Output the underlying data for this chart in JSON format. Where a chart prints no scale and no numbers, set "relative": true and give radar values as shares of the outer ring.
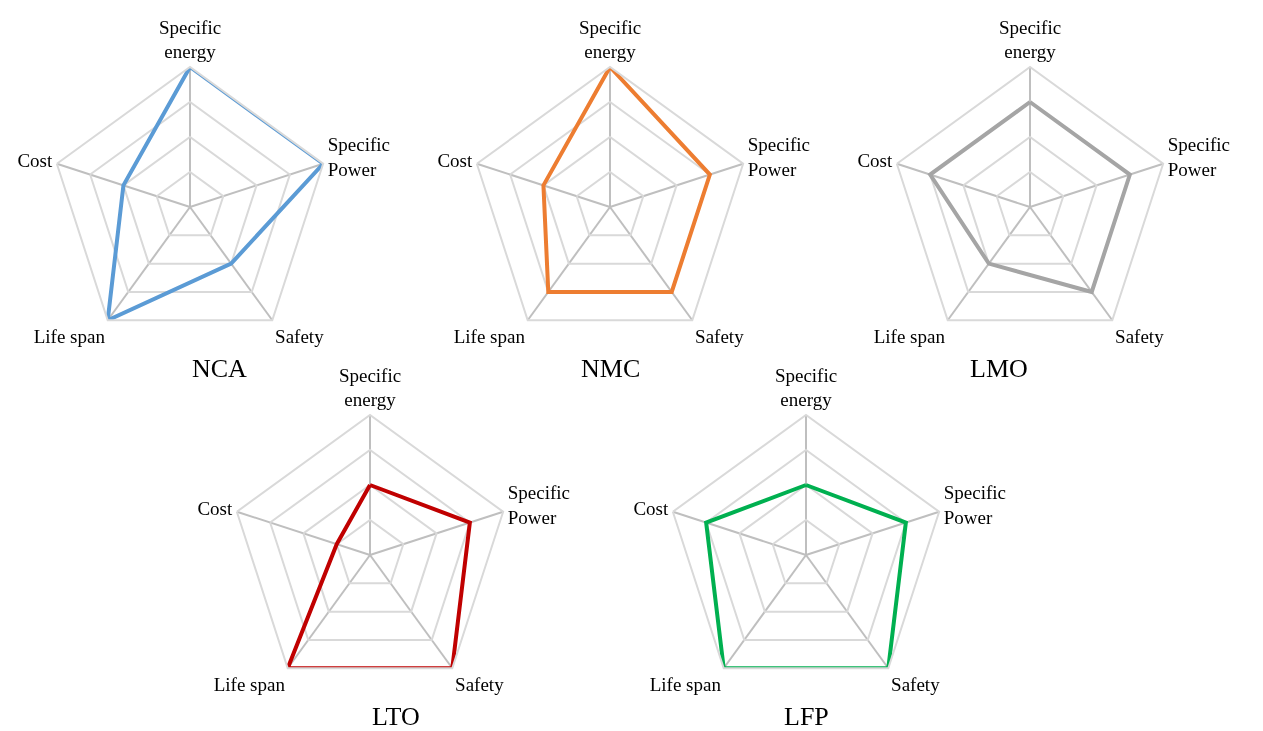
{
  "chart_data": [
    {
      "type": "radar",
      "title": "NCA",
      "relative": true,
      "grid": true,
      "marker": "none",
      "categories": [
        "Specific energy",
        "Specific Power",
        "Safety",
        "Life span",
        "Cost"
      ],
      "series": [
        {
          "color": "#5b9bd5",
          "values": [
            1,
            1,
            0.5,
            1,
            0.5
          ]
        }
      ]
    },
    {
      "type": "radar",
      "title": "NMC",
      "relative": true,
      "grid": true,
      "marker": "none",
      "categories": [
        "Specific energy",
        "Specific Power",
        "Safety",
        "Life span",
        "Cost"
      ],
      "series": [
        {
          "color": "#ed7d31",
          "values": [
            1,
            0.75,
            0.75,
            0.75,
            0.5
          ]
        }
      ]
    },
    {
      "type": "radar",
      "title": "LMO",
      "relative": true,
      "grid": true,
      "marker": "none",
      "categories": [
        "Specific energy",
        "Specific Power",
        "Safety",
        "Life span",
        "Cost"
      ],
      "series": [
        {
          "color": "#a5a5a5",
          "values": [
            0.75,
            0.75,
            0.75,
            0.5,
            0.75
          ]
        }
      ]
    },
    {
      "type": "radar",
      "title": "LTO",
      "relative": true,
      "grid": true,
      "marker": "none",
      "categories": [
        "Specific energy",
        "Specific Power",
        "Safety",
        "Life span",
        "Cost"
      ],
      "series": [
        {
          "color": "#c00000",
          "values": [
            0.5,
            0.75,
            1,
            1,
            0.25
          ]
        }
      ]
    },
    {
      "type": "radar",
      "title": "LFP",
      "relative": true,
      "grid": true,
      "marker": "none",
      "categories": [
        "Specific energy",
        "Specific Power",
        "Safety",
        "Life span",
        "Cost"
      ],
      "series": [
        {
          "color": "#00b050",
          "values": [
            0.5,
            0.75,
            1,
            1,
            0.75
          ]
        }
      ]
    }
  ]
}
